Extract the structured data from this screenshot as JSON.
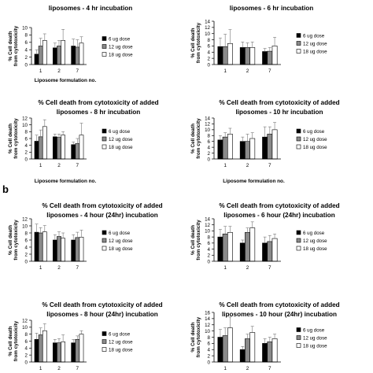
{
  "panel_label": "b",
  "chart_data": [
    {
      "type": "bar",
      "title": "liposomes - 4 hr incubation",
      "xlabel": "Liposome formulation no.",
      "ylabel": "% Cell death from cytotoxicity",
      "categories": [
        "1",
        "2",
        "7"
      ],
      "ylim": [
        0,
        10
      ],
      "yticks": [
        "0",
        "2",
        "4",
        "6",
        "8",
        "10"
      ],
      "series": [
        {
          "name": "6 ug dose",
          "values": [
            2.8,
            4.5,
            5.0
          ],
          "errors": [
            1.2,
            1.3,
            1.9
          ]
        },
        {
          "name": "12 ug dose",
          "values": [
            5.0,
            5.0,
            4.7
          ],
          "errors": [
            2.1,
            1.5,
            2.0
          ]
        },
        {
          "name": "18 ug dose",
          "values": [
            6.5,
            6.5,
            5.8
          ],
          "errors": [
            1.8,
            3.0,
            1.7
          ]
        }
      ],
      "legend": "right"
    },
    {
      "type": "bar",
      "title": "liposomes - 6 hr incubation",
      "xlabel": "",
      "ylabel": "% Cell death from cytotoxicity",
      "categories": [
        "1",
        "2",
        "7"
      ],
      "ylim": [
        0,
        14
      ],
      "yticks": [
        "0",
        "2",
        "4",
        "6",
        "8",
        "10",
        "12",
        "14"
      ],
      "series": [
        {
          "name": "6 ug dose",
          "values": [
            5.8,
            5.5,
            4.2
          ],
          "errors": [
            2.8,
            1.8,
            1.0
          ]
        },
        {
          "name": "12 ug dose",
          "values": [
            5.8,
            5.5,
            4.3
          ],
          "errors": [
            4.0,
            1.5,
            1.2
          ]
        },
        {
          "name": "18 ug dose",
          "values": [
            6.8,
            5.5,
            6.0
          ],
          "errors": [
            4.5,
            1.8,
            2.8
          ]
        }
      ],
      "legend": "right"
    },
    {
      "type": "bar",
      "title": "% Cell death from cytotoxicity of added liposomes - 8 hr incubation",
      "xlabel": "Liposome formulation no.",
      "ylabel": "% Cell death from cytotoxicity",
      "categories": [
        "1",
        "2",
        "7"
      ],
      "ylim": [
        0,
        12
      ],
      "yticks": [
        "0",
        "2",
        "4",
        "6",
        "8",
        "10",
        "12"
      ],
      "series": [
        {
          "name": "6 ug dose",
          "values": [
            5.2,
            6.5,
            4.2
          ],
          "errors": [
            1.8,
            0.8,
            0.8
          ]
        },
        {
          "name": "12 ug dose",
          "values": [
            6.5,
            6.3,
            4.5
          ],
          "errors": [
            2.0,
            1.0,
            1.5
          ]
        },
        {
          "name": "18 ug dose",
          "values": [
            9.5,
            7.0,
            7.0
          ],
          "errors": [
            2.0,
            1.0,
            3.5
          ]
        }
      ],
      "legend": "right"
    },
    {
      "type": "bar",
      "title": "% Cell death from cytotoxicity of added liposomes - 10 hr incubation",
      "xlabel": "Liposome formulation no.",
      "ylabel": "% Cell death from cytotoxicity",
      "categories": [
        "1",
        "2",
        "7"
      ],
      "ylim": [
        0,
        14
      ],
      "yticks": [
        "0",
        "2",
        "4",
        "6",
        "8",
        "10",
        "12",
        "14"
      ],
      "series": [
        {
          "name": "6 ug dose",
          "values": [
            6.5,
            6.0,
            7.5
          ],
          "errors": [
            1.5,
            1.5,
            3.5
          ]
        },
        {
          "name": "12 ug dose",
          "values": [
            7.5,
            6.0,
            8.5
          ],
          "errors": [
            1.5,
            2.5,
            2.5
          ]
        },
        {
          "name": "18 ug dose",
          "values": [
            8.5,
            7.0,
            10.0
          ],
          "errors": [
            2.0,
            2.0,
            2.5
          ]
        }
      ],
      "legend": "right"
    },
    {
      "type": "bar",
      "title": "% Cell death from cytotoxicity of added liposomes - 4 hour (24hr) incubation",
      "xlabel": "",
      "ylabel": "% Cell death from cytotoxicity",
      "categories": [
        "1",
        "2",
        "7"
      ],
      "ylim": [
        0,
        12
      ],
      "yticks": [
        "0",
        "2",
        "4",
        "6",
        "8",
        "10",
        "12"
      ],
      "series": [
        {
          "name": "6 ug dose",
          "values": [
            8.2,
            6.0,
            6.0
          ],
          "errors": [
            2.3,
            1.5,
            1.5
          ]
        },
        {
          "name": "12 ug dose",
          "values": [
            8.0,
            7.0,
            6.7
          ],
          "errors": [
            1.5,
            1.3,
            1.5
          ]
        },
        {
          "name": "18 ug dose",
          "values": [
            8.3,
            6.5,
            6.8
          ],
          "errors": [
            1.8,
            1.5,
            2.0
          ]
        }
      ],
      "legend": "right"
    },
    {
      "type": "bar",
      "title": "% Cell death from cytotoxicity of added liposomes - 6 hour (24hr) incubation",
      "xlabel": "",
      "ylabel": "% Cell death from cytotoxicity",
      "categories": [
        "1",
        "2",
        "7"
      ],
      "ylim": [
        0,
        14
      ],
      "yticks": [
        "0",
        "2",
        "4",
        "6",
        "8",
        "10",
        "12",
        "14"
      ],
      "series": [
        {
          "name": "6 ug dose",
          "values": [
            8.0,
            6.0,
            6.0
          ],
          "errors": [
            2.5,
            1.0,
            2.0
          ]
        },
        {
          "name": "12 ug dose",
          "values": [
            9.0,
            9.5,
            6.5
          ],
          "errors": [
            2.5,
            1.5,
            2.0
          ]
        },
        {
          "name": "18 ug dose",
          "values": [
            9.5,
            11.0,
            7.5
          ],
          "errors": [
            2.0,
            2.0,
            1.5
          ]
        }
      ],
      "legend": "right"
    },
    {
      "type": "bar",
      "title": "% Cell death from cytotoxicity of added liposomes - 8 hour (24hr) incubation",
      "xlabel": "",
      "ylabel": "% Cell death from cytotoxicity",
      "categories": [
        "1",
        "2",
        "7"
      ],
      "ylim": [
        0,
        12
      ],
      "yticks": [
        "0",
        "2",
        "4",
        "6",
        "8",
        "10",
        "12"
      ],
      "series": [
        {
          "name": "6 ug dose",
          "values": [
            6.5,
            5.5,
            5.5
          ],
          "errors": [
            1.8,
            1.0,
            1.0
          ]
        },
        {
          "name": "12 ug dose",
          "values": [
            7.8,
            5.5,
            6.5
          ],
          "errors": [
            2.0,
            1.2,
            1.0
          ]
        },
        {
          "name": "18 ug dose",
          "values": [
            9.0,
            5.8,
            8.0
          ],
          "errors": [
            2.0,
            2.0,
            1.0
          ]
        }
      ],
      "legend": "right"
    },
    {
      "type": "bar",
      "title": "% Cell death from cytotoxicity of added liposomes - 10 hour (24hr) incubation",
      "xlabel": "",
      "ylabel": "% Cell death from cytotoxicity",
      "categories": [
        "1",
        "2",
        "7"
      ],
      "ylim": [
        0,
        16
      ],
      "yticks": [
        "0",
        "2",
        "4",
        "6",
        "8",
        "10",
        "12",
        "14",
        "16"
      ],
      "series": [
        {
          "name": "6 ug dose",
          "values": [
            8.0,
            4.0,
            6.0
          ],
          "errors": [
            2.5,
            1.0,
            1.5
          ]
        },
        {
          "name": "12 ug dose",
          "values": [
            8.5,
            7.5,
            6.5
          ],
          "errors": [
            2.5,
            1.5,
            1.5
          ]
        },
        {
          "name": "18 ug dose",
          "values": [
            11.0,
            9.5,
            7.5
          ],
          "errors": [
            3.5,
            2.0,
            1.5
          ]
        }
      ],
      "legend": "right"
    }
  ],
  "colors": {
    "series": [
      "#000000",
      "#8a8a8a",
      "#ffffff"
    ],
    "bar_stroke": "#000000",
    "error_bar": "#777777",
    "axis": "#000000"
  }
}
